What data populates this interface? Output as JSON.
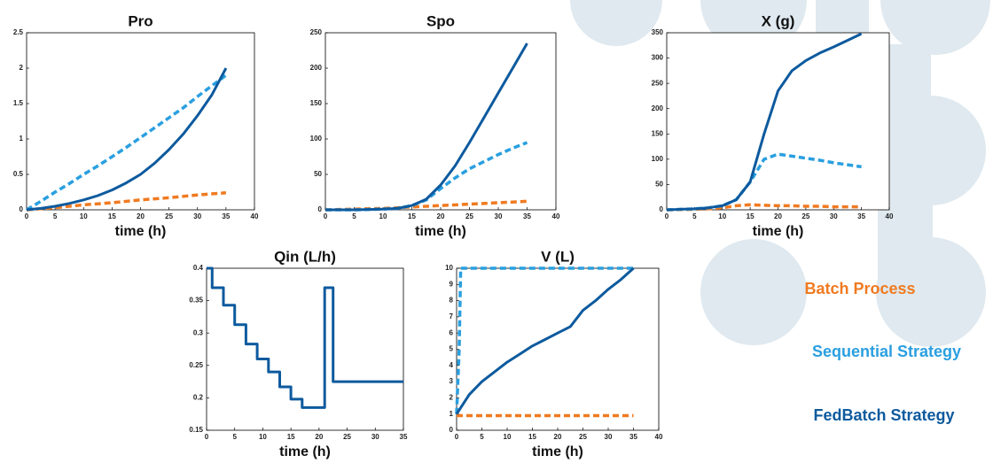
{
  "chart_data": [
    {
      "type": "line",
      "title": "Pro",
      "xlabel": "time (h)",
      "xlim": [
        0,
        40
      ],
      "xticks": [
        0,
        5,
        10,
        15,
        20,
        25,
        30,
        35,
        40
      ],
      "ylim": [
        0,
        2.5
      ],
      "yticks": [
        0,
        0.5,
        1,
        1.5,
        2,
        2.5
      ],
      "series": [
        {
          "color": "#f07a20",
          "dashed": true,
          "x": [
            0,
            5,
            10,
            15,
            20,
            25,
            30,
            35
          ],
          "values": [
            0,
            0.03,
            0.07,
            0.1,
            0.14,
            0.17,
            0.21,
            0.24
          ]
        },
        {
          "color": "#2a9fe0",
          "dashed": true,
          "x": [
            0,
            2.5,
            5,
            7.5,
            10,
            12.5,
            15,
            17.5,
            20,
            22.5,
            25,
            27.5,
            30,
            32.5,
            35
          ],
          "values": [
            0,
            0.12,
            0.25,
            0.37,
            0.5,
            0.62,
            0.75,
            0.88,
            1.02,
            1.16,
            1.3,
            1.44,
            1.6,
            1.75,
            1.9
          ]
        },
        {
          "color": "#0d5a9e",
          "dashed": false,
          "x": [
            0,
            2.5,
            5,
            7.5,
            10,
            12.5,
            15,
            17.5,
            20,
            22.5,
            25,
            27.5,
            30,
            32.5,
            35
          ],
          "values": [
            0,
            0.02,
            0.05,
            0.09,
            0.14,
            0.2,
            0.28,
            0.38,
            0.5,
            0.66,
            0.85,
            1.07,
            1.33,
            1.62,
            2.0
          ]
        }
      ]
    },
    {
      "type": "line",
      "title": "Spo",
      "xlabel": "time (h)",
      "xlim": [
        0,
        40
      ],
      "xticks": [
        0,
        5,
        10,
        15,
        20,
        25,
        30,
        35,
        40
      ],
      "ylim": [
        0,
        250
      ],
      "yticks": [
        0,
        50,
        100,
        150,
        200,
        250
      ],
      "series": [
        {
          "color": "#f07a20",
          "dashed": true,
          "x": [
            0,
            5,
            10,
            15,
            20,
            25,
            30,
            35
          ],
          "values": [
            0,
            1,
            2,
            4,
            6,
            8,
            10,
            12
          ]
        },
        {
          "color": "#2a9fe0",
          "dashed": true,
          "x": [
            0,
            2.5,
            5,
            7.5,
            10,
            12.5,
            15,
            17.5,
            20,
            22.5,
            25,
            27.5,
            30,
            32.5,
            35
          ],
          "values": [
            0,
            0,
            0,
            0.5,
            1,
            2,
            6,
            14,
            30,
            45,
            58,
            68,
            78,
            87,
            95
          ]
        },
        {
          "color": "#0d5a9e",
          "dashed": false,
          "x": [
            0,
            2.5,
            5,
            7.5,
            10,
            12.5,
            15,
            17.5,
            20,
            22.5,
            25,
            27.5,
            30,
            32.5,
            35
          ],
          "values": [
            0,
            0,
            0,
            0.5,
            1,
            2,
            6,
            15,
            35,
            62,
            95,
            130,
            165,
            200,
            235
          ]
        }
      ]
    },
    {
      "type": "line",
      "title": "X (g)",
      "xlabel": "time (h)",
      "xlim": [
        0,
        40
      ],
      "xticks": [
        0,
        5,
        10,
        15,
        20,
        25,
        30,
        35,
        40
      ],
      "ylim": [
        0,
        350
      ],
      "yticks": [
        0,
        50,
        100,
        150,
        200,
        250,
        300,
        350
      ],
      "series": [
        {
          "color": "#f07a20",
          "dashed": true,
          "x": [
            0,
            2.5,
            5,
            7.5,
            10,
            12.5,
            15,
            17.5,
            20,
            22.5,
            25,
            27.5,
            30,
            32.5,
            35
          ],
          "values": [
            0,
            0.5,
            1,
            2,
            4,
            8,
            10,
            9,
            8,
            8,
            7,
            7,
            6,
            6,
            6
          ]
        },
        {
          "color": "#2a9fe0",
          "dashed": true,
          "x": [
            0,
            2.5,
            5,
            7.5,
            10,
            12.5,
            15,
            17.5,
            20,
            22.5,
            25,
            27.5,
            30,
            32.5,
            35
          ],
          "values": [
            0,
            1,
            2,
            4,
            8,
            20,
            55,
            100,
            110,
            106,
            102,
            98,
            93,
            89,
            85
          ]
        },
        {
          "color": "#0d5a9e",
          "dashed": false,
          "x": [
            0,
            2.5,
            5,
            7.5,
            10,
            12.5,
            15,
            17.5,
            20,
            22.5,
            25,
            27.5,
            30,
            32.5,
            35
          ],
          "values": [
            0,
            1,
            2,
            4,
            8,
            20,
            55,
            150,
            235,
            275,
            295,
            310,
            322,
            335,
            348
          ]
        }
      ]
    },
    {
      "type": "line",
      "title": "Qin (L/h)",
      "xlabel": "time (h)",
      "xlim": [
        0,
        35
      ],
      "xticks": [
        0,
        5,
        10,
        15,
        20,
        25,
        30,
        35
      ],
      "ylim": [
        0.15,
        0.4
      ],
      "yticks": [
        0.15,
        0.2,
        0.25,
        0.3,
        0.35,
        0.4
      ],
      "series": [
        {
          "color": "#0d5a9e",
          "dashed": false,
          "x": [
            0,
            1,
            1,
            3,
            3,
            5,
            5,
            7,
            7,
            9,
            9,
            11,
            11,
            13,
            13,
            15,
            15,
            17,
            17,
            21,
            21,
            22.5,
            22.5,
            35
          ],
          "values": [
            0.4,
            0.4,
            0.37,
            0.37,
            0.343,
            0.343,
            0.313,
            0.313,
            0.283,
            0.283,
            0.26,
            0.26,
            0.24,
            0.24,
            0.217,
            0.217,
            0.198,
            0.198,
            0.185,
            0.185,
            0.37,
            0.37,
            0.225,
            0.225
          ]
        }
      ]
    },
    {
      "type": "line",
      "title": "V (L)",
      "xlabel": "time (h)",
      "xlim": [
        0,
        40
      ],
      "xticks": [
        0,
        5,
        10,
        15,
        20,
        25,
        30,
        35,
        40
      ],
      "ylim": [
        0,
        10
      ],
      "yticks": [
        0,
        1,
        2,
        3,
        4,
        5,
        6,
        7,
        8,
        9,
        10
      ],
      "series": [
        {
          "color": "#f07a20",
          "dashed": true,
          "x": [
            0,
            35
          ],
          "values": [
            0.9,
            0.9
          ]
        },
        {
          "color": "#2a9fe0",
          "dashed": true,
          "x": [
            0,
            0.5,
            0.8,
            35
          ],
          "values": [
            1,
            5,
            10,
            10
          ]
        },
        {
          "color": "#0d5a9e",
          "dashed": false,
          "x": [
            0,
            2.5,
            5,
            7.5,
            10,
            12.5,
            15,
            17.5,
            20,
            22.5,
            25,
            27.5,
            30,
            32.5,
            35
          ],
          "values": [
            1,
            2.2,
            3.0,
            3.6,
            4.2,
            4.7,
            5.2,
            5.6,
            6.0,
            6.4,
            7.4,
            8.0,
            8.7,
            9.3,
            10
          ]
        }
      ]
    }
  ],
  "legend": [
    {
      "name": "Batch Process",
      "color": "#f07a20"
    },
    {
      "name": "Sequential Strategy",
      "color": "#2a9fe0"
    },
    {
      "name": "FedBatch Strategy",
      "color": "#0d5a9e"
    }
  ]
}
